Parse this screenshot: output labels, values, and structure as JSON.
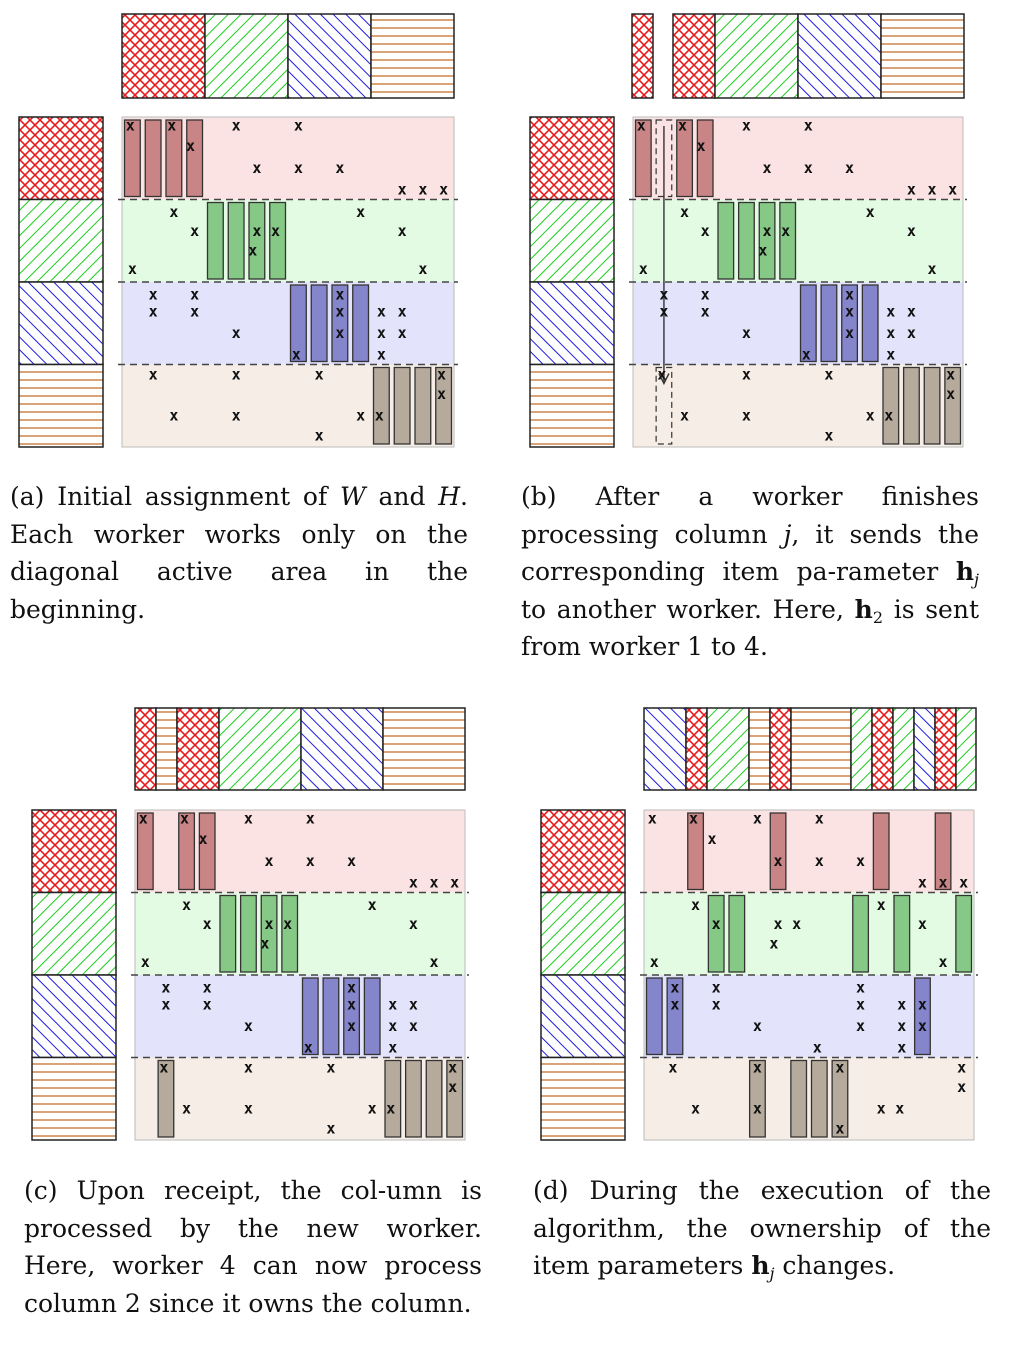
{
  "colors": {
    "worker1": "#e81c1c",
    "worker2": "#1ccc1c",
    "worker3": "#1c1ce0",
    "worker4": "#c87c3c",
    "band1": "#fbe3e3",
    "band2": "#e3fbe3",
    "band3": "#e3e3fb",
    "band4": "#f6ede6",
    "col1": "#c98585",
    "col2": "#86c986",
    "col3": "#8585cc",
    "col4": "#b5aa9c"
  },
  "marker": "x",
  "panels": [
    {
      "id": "a",
      "caption": {
        "label": "(a)",
        "text_html": "Initial assignment of <i>W</i> and <i>H</i>. Each worker works only on the diagonal active area in the beginning."
      },
      "top_segments": [
        {
          "pattern": "worker1",
          "start": 0,
          "end": 1
        },
        {
          "pattern": "worker2",
          "start": 1,
          "end": 2
        },
        {
          "pattern": "worker3",
          "start": 2,
          "end": 3
        },
        {
          "pattern": "worker4",
          "start": 3,
          "end": 4
        }
      ],
      "columns": [
        {
          "band": 1,
          "pos": 0
        },
        {
          "band": 1,
          "pos": 1
        },
        {
          "band": 1,
          "pos": 2
        },
        {
          "band": 1,
          "pos": 3
        },
        {
          "band": 2,
          "pos": 4
        },
        {
          "band": 2,
          "pos": 5
        },
        {
          "band": 2,
          "pos": 6
        },
        {
          "band": 2,
          "pos": 7
        },
        {
          "band": 3,
          "pos": 8
        },
        {
          "band": 3,
          "pos": 9
        },
        {
          "band": 3,
          "pos": 10
        },
        {
          "band": 3,
          "pos": 11
        },
        {
          "band": 4,
          "pos": 12
        },
        {
          "band": 4,
          "pos": 13
        },
        {
          "band": 4,
          "pos": 14
        },
        {
          "band": 4,
          "pos": 15
        }
      ],
      "marks": [
        [
          0.4,
          0.1
        ],
        [
          2.4,
          0.1
        ],
        [
          3.3,
          0.35
        ],
        [
          5.5,
          0.1
        ],
        [
          8.5,
          0.1
        ],
        [
          6.5,
          0.62
        ],
        [
          8.5,
          0.62
        ],
        [
          10.5,
          0.62
        ],
        [
          13.5,
          0.88
        ],
        [
          14.5,
          0.88
        ],
        [
          15.5,
          0.88
        ],
        [
          2.5,
          1.15
        ],
        [
          11.5,
          1.15
        ],
        [
          3.5,
          1.38
        ],
        [
          6.5,
          1.38
        ],
        [
          7.4,
          1.38
        ],
        [
          13.5,
          1.38
        ],
        [
          0.5,
          1.84
        ],
        [
          14.5,
          1.84
        ],
        [
          6.3,
          1.62
        ],
        [
          1.5,
          2.15
        ],
        [
          3.5,
          2.15
        ],
        [
          1.5,
          2.36
        ],
        [
          3.5,
          2.36
        ],
        [
          10.5,
          2.15
        ],
        [
          10.5,
          2.36
        ],
        [
          5.5,
          2.62
        ],
        [
          10.5,
          2.62
        ],
        [
          12.5,
          2.36
        ],
        [
          13.5,
          2.36
        ],
        [
          12.5,
          2.62
        ],
        [
          13.5,
          2.62
        ],
        [
          8.4,
          2.88
        ],
        [
          12.5,
          2.88
        ],
        [
          1.5,
          3.12
        ],
        [
          5.5,
          3.12
        ],
        [
          9.5,
          3.12
        ],
        [
          15.4,
          3.12
        ],
        [
          15.4,
          3.36
        ],
        [
          2.5,
          3.62
        ],
        [
          5.5,
          3.62
        ],
        [
          11.5,
          3.62
        ],
        [
          12.4,
          3.62
        ],
        [
          9.5,
          3.86
        ]
      ]
    },
    {
      "id": "b",
      "caption": {
        "label": "(b)",
        "text_html": "After a worker finishes processing column <i>j</i>, it sends the corresponding item pa-rameter <b>h</b><sub><i>j</i></sub> to another worker. Here, <b>h</b><sub>2</sub> is sent from worker 1 to 4."
      },
      "top_segments": [
        {
          "pattern": "worker1",
          "start": 0,
          "end": 0.25
        },
        {
          "pattern": "worker1",
          "start": 1.75,
          "end": 1.95,
          "note": "spacer"
        },
        {
          "pattern": "worker1",
          "start": 0.9,
          "end": 1.3
        },
        {
          "pattern": "worker2",
          "start": 1.3,
          "end": 2.3
        },
        {
          "pattern": "worker3",
          "start": 2.3,
          "end": 3.3
        },
        {
          "pattern": "worker4",
          "start": 3.3,
          "end": 4.3
        }
      ],
      "columns": [
        {
          "band": 1,
          "pos": 0
        },
        {
          "band": 1,
          "pos": 2
        },
        {
          "band": 1,
          "pos": 3
        },
        {
          "band": 2,
          "pos": 4
        },
        {
          "band": 2,
          "pos": 5
        },
        {
          "band": 2,
          "pos": 6
        },
        {
          "band": 2,
          "pos": 7
        },
        {
          "band": 3,
          "pos": 8
        },
        {
          "band": 3,
          "pos": 9
        },
        {
          "band": 3,
          "pos": 10
        },
        {
          "band": 3,
          "pos": 11
        },
        {
          "band": 4,
          "pos": 12
        },
        {
          "band": 4,
          "pos": 13
        },
        {
          "band": 4,
          "pos": 14
        },
        {
          "band": 4,
          "pos": 15
        }
      ],
      "ghost_from": {
        "band": 1,
        "pos": 1
      },
      "ghost_to": {
        "band": 4,
        "pos": 1
      },
      "marks": [
        [
          0.4,
          0.1
        ],
        [
          2.4,
          0.1
        ],
        [
          3.3,
          0.35
        ],
        [
          5.5,
          0.1
        ],
        [
          8.5,
          0.1
        ],
        [
          6.5,
          0.62
        ],
        [
          8.5,
          0.62
        ],
        [
          10.5,
          0.62
        ],
        [
          13.5,
          0.88
        ],
        [
          14.5,
          0.88
        ],
        [
          15.5,
          0.88
        ],
        [
          2.5,
          1.15
        ],
        [
          11.5,
          1.15
        ],
        [
          3.5,
          1.38
        ],
        [
          6.5,
          1.38
        ],
        [
          7.4,
          1.38
        ],
        [
          13.5,
          1.38
        ],
        [
          0.5,
          1.84
        ],
        [
          14.5,
          1.84
        ],
        [
          6.3,
          1.62
        ],
        [
          1.5,
          2.15
        ],
        [
          3.5,
          2.15
        ],
        [
          1.5,
          2.36
        ],
        [
          3.5,
          2.36
        ],
        [
          10.5,
          2.15
        ],
        [
          10.5,
          2.36
        ],
        [
          5.5,
          2.62
        ],
        [
          10.5,
          2.62
        ],
        [
          12.5,
          2.36
        ],
        [
          13.5,
          2.36
        ],
        [
          12.5,
          2.62
        ],
        [
          13.5,
          2.62
        ],
        [
          8.4,
          2.88
        ],
        [
          12.5,
          2.88
        ],
        [
          1.4,
          3.12
        ],
        [
          5.5,
          3.12
        ],
        [
          9.5,
          3.12
        ],
        [
          15.4,
          3.12
        ],
        [
          15.4,
          3.36
        ],
        [
          2.5,
          3.62
        ],
        [
          5.5,
          3.62
        ],
        [
          11.5,
          3.62
        ],
        [
          12.4,
          3.62
        ],
        [
          9.5,
          3.86
        ]
      ]
    },
    {
      "id": "c",
      "caption": {
        "label": "(c)",
        "text_html": "Upon receipt, the col-umn is processed by the new worker. Here, worker 4 can now process column 2 since it owns the column."
      },
      "columns": [
        {
          "band": 1,
          "pos": 0
        },
        {
          "band": 1,
          "pos": 2
        },
        {
          "band": 1,
          "pos": 3
        },
        {
          "band": 2,
          "pos": 4
        },
        {
          "band": 2,
          "pos": 5
        },
        {
          "band": 2,
          "pos": 6
        },
        {
          "band": 2,
          "pos": 7
        },
        {
          "band": 3,
          "pos": 8
        },
        {
          "band": 3,
          "pos": 9
        },
        {
          "band": 3,
          "pos": 10
        },
        {
          "band": 3,
          "pos": 11
        },
        {
          "band": 4,
          "pos": 1
        },
        {
          "band": 4,
          "pos": 12
        },
        {
          "band": 4,
          "pos": 13
        },
        {
          "band": 4,
          "pos": 14
        },
        {
          "band": 4,
          "pos": 15
        }
      ],
      "marks": [
        [
          0.4,
          0.1
        ],
        [
          2.4,
          0.1
        ],
        [
          3.3,
          0.35
        ],
        [
          5.5,
          0.1
        ],
        [
          8.5,
          0.1
        ],
        [
          6.5,
          0.62
        ],
        [
          8.5,
          0.62
        ],
        [
          10.5,
          0.62
        ],
        [
          13.5,
          0.88
        ],
        [
          14.5,
          0.88
        ],
        [
          15.5,
          0.88
        ],
        [
          2.5,
          1.15
        ],
        [
          11.5,
          1.15
        ],
        [
          3.5,
          1.38
        ],
        [
          6.5,
          1.38
        ],
        [
          7.4,
          1.38
        ],
        [
          13.5,
          1.38
        ],
        [
          0.5,
          1.84
        ],
        [
          14.5,
          1.84
        ],
        [
          6.3,
          1.62
        ],
        [
          1.5,
          2.15
        ],
        [
          3.5,
          2.15
        ],
        [
          1.5,
          2.36
        ],
        [
          3.5,
          2.36
        ],
        [
          10.5,
          2.15
        ],
        [
          10.5,
          2.36
        ],
        [
          5.5,
          2.62
        ],
        [
          10.5,
          2.62
        ],
        [
          12.5,
          2.36
        ],
        [
          13.5,
          2.36
        ],
        [
          12.5,
          2.62
        ],
        [
          13.5,
          2.62
        ],
        [
          8.4,
          2.88
        ],
        [
          12.5,
          2.88
        ],
        [
          1.4,
          3.12
        ],
        [
          5.5,
          3.12
        ],
        [
          9.5,
          3.12
        ],
        [
          15.4,
          3.12
        ],
        [
          15.4,
          3.36
        ],
        [
          2.5,
          3.62
        ],
        [
          5.5,
          3.62
        ],
        [
          11.5,
          3.62
        ],
        [
          12.4,
          3.62
        ],
        [
          9.5,
          3.86
        ]
      ]
    },
    {
      "id": "d",
      "caption": {
        "label": "(d)",
        "text_html": "During the execution of the algorithm, the ownership of the item parameters <b>h</b><sub><i>j</i></sub> changes."
      },
      "columns": [
        {
          "band": 3,
          "pos": 0
        },
        {
          "band": 1,
          "pos": 2
        },
        {
          "band": 2,
          "pos": 3
        },
        {
          "band": 2,
          "pos": 4
        },
        {
          "band": 4,
          "pos": 5
        },
        {
          "band": 1,
          "pos": 6
        },
        {
          "band": 4,
          "pos": 7
        },
        {
          "band": 4,
          "pos": 8
        },
        {
          "band": 4,
          "pos": 9
        },
        {
          "band": 2,
          "pos": 10
        },
        {
          "band": 1,
          "pos": 11
        },
        {
          "band": 2,
          "pos": 12
        },
        {
          "band": 3,
          "pos": 13
        },
        {
          "band": 1,
          "pos": 14
        },
        {
          "band": 2,
          "pos": 15
        },
        {
          "band": 3,
          "pos": 1
        }
      ],
      "marks": [
        [
          0.4,
          0.1
        ],
        [
          2.4,
          0.1
        ],
        [
          3.3,
          0.35
        ],
        [
          5.5,
          0.1
        ],
        [
          8.5,
          0.1
        ],
        [
          6.5,
          0.62
        ],
        [
          8.5,
          0.62
        ],
        [
          10.5,
          0.62
        ],
        [
          13.5,
          0.88
        ],
        [
          14.5,
          0.88
        ],
        [
          15.5,
          0.88
        ],
        [
          2.5,
          1.15
        ],
        [
          11.5,
          1.15
        ],
        [
          3.5,
          1.38
        ],
        [
          6.5,
          1.38
        ],
        [
          7.4,
          1.38
        ],
        [
          13.5,
          1.38
        ],
        [
          0.5,
          1.84
        ],
        [
          14.5,
          1.84
        ],
        [
          6.3,
          1.62
        ],
        [
          1.5,
          2.15
        ],
        [
          3.5,
          2.15
        ],
        [
          1.5,
          2.36
        ],
        [
          3.5,
          2.36
        ],
        [
          10.5,
          2.15
        ],
        [
          10.5,
          2.36
        ],
        [
          5.5,
          2.62
        ],
        [
          10.5,
          2.62
        ],
        [
          12.5,
          2.36
        ],
        [
          13.5,
          2.36
        ],
        [
          12.5,
          2.62
        ],
        [
          13.5,
          2.62
        ],
        [
          8.4,
          2.88
        ],
        [
          12.5,
          2.88
        ],
        [
          1.4,
          3.12
        ],
        [
          5.5,
          3.12
        ],
        [
          9.5,
          3.12
        ],
        [
          15.4,
          3.12
        ],
        [
          15.4,
          3.36
        ],
        [
          2.5,
          3.62
        ],
        [
          5.5,
          3.62
        ],
        [
          11.5,
          3.62
        ],
        [
          12.4,
          3.62
        ],
        [
          9.5,
          3.86
        ]
      ]
    }
  ],
  "top_strips": {
    "c": [
      "worker1",
      "worker4",
      "worker1",
      "worker2",
      "worker3",
      "worker4"
    ],
    "d": [
      "worker3",
      "worker1",
      "worker2",
      "worker4",
      "worker1",
      "worker4",
      "worker2",
      "worker1",
      "worker2",
      "worker3",
      "worker1",
      "worker2"
    ]
  }
}
